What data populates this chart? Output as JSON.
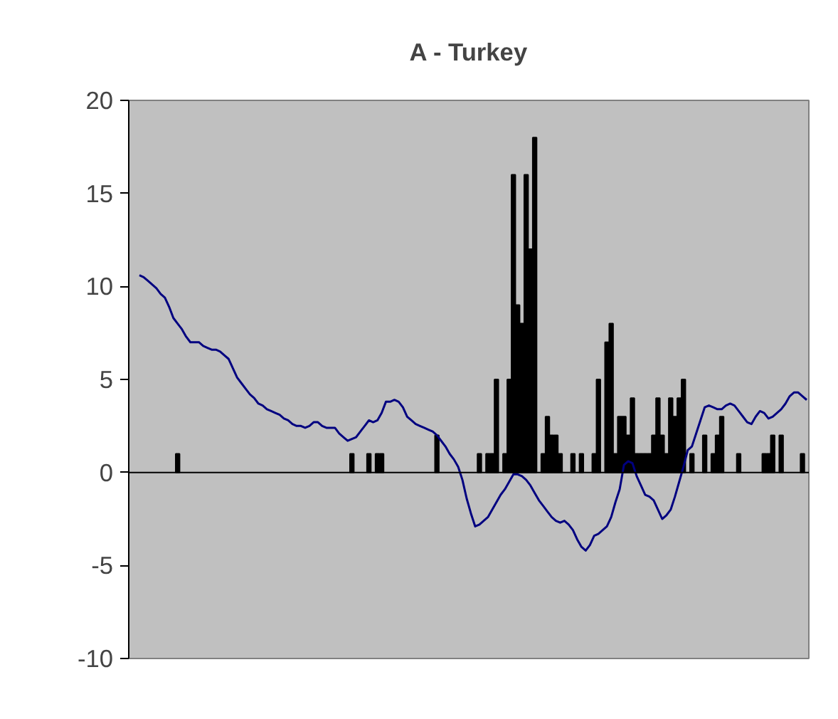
{
  "chart_data": {
    "type": "bar",
    "title": "A - Turkey",
    "categories": [
      null,
      null,
      null,
      null,
      null,
      null,
      null,
      null,
      null,
      null,
      null,
      null,
      null,
      null,
      null,
      null,
      null,
      null,
      null,
      null,
      null,
      null,
      null,
      null,
      null,
      null,
      null,
      null,
      null,
      null,
      null,
      null,
      null,
      null,
      null,
      null,
      null,
      null,
      null,
      null,
      null,
      null,
      null,
      null,
      null,
      null,
      null,
      null,
      null,
      null,
      null,
      null,
      null,
      null,
      null,
      null,
      null,
      null,
      null,
      null,
      null,
      null,
      null,
      null,
      null,
      null,
      null,
      null,
      null,
      null,
      null,
      null,
      null,
      null,
      null,
      null,
      null,
      null,
      null,
      null,
      null,
      null,
      null,
      null,
      null,
      null,
      null,
      null,
      null,
      null,
      null,
      null,
      null,
      null,
      null,
      null,
      null,
      null,
      null,
      null,
      null,
      null,
      null,
      null,
      null,
      null,
      null,
      null,
      null,
      null,
      null,
      null,
      null,
      null,
      null,
      null,
      null,
      null,
      null,
      null,
      null,
      null,
      null,
      null,
      null,
      null,
      null,
      null,
      null,
      null,
      null,
      null,
      null,
      null,
      null,
      null,
      null,
      null,
      null,
      null,
      null,
      null,
      null,
      null,
      null,
      null,
      null,
      null,
      null,
      null,
      null,
      null,
      null,
      null,
      null,
      null,
      null,
      null,
      null,
      null
    ],
    "series": [
      {
        "type": "bar",
        "color": "#000000",
        "values": [
          null,
          null,
          null,
          null,
          null,
          null,
          null,
          null,
          null,
          null,
          null,
          1,
          null,
          null,
          null,
          null,
          null,
          null,
          null,
          null,
          null,
          null,
          null,
          null,
          null,
          null,
          null,
          null,
          null,
          null,
          null,
          null,
          null,
          null,
          null,
          null,
          null,
          null,
          null,
          null,
          null,
          null,
          null,
          null,
          null,
          null,
          null,
          null,
          null,
          null,
          null,
          null,
          1,
          null,
          null,
          null,
          1,
          null,
          1,
          1,
          null,
          null,
          null,
          null,
          null,
          null,
          null,
          null,
          null,
          null,
          null,
          null,
          2,
          null,
          null,
          null,
          null,
          null,
          null,
          null,
          null,
          null,
          1,
          null,
          1,
          1,
          5,
          null,
          1,
          5,
          16,
          9,
          8,
          16,
          12,
          18,
          null,
          1,
          3,
          2,
          2,
          1,
          null,
          null,
          1,
          null,
          1,
          null,
          null,
          1,
          5,
          null,
          7,
          8,
          1,
          3,
          3,
          2,
          4,
          1,
          1,
          1,
          1,
          2,
          4,
          2,
          1,
          4,
          3,
          4,
          5,
          null,
          1,
          null,
          null,
          2,
          null,
          1,
          2,
          3,
          null,
          null,
          null,
          1,
          null,
          null,
          null,
          null,
          null,
          1,
          1,
          2,
          null,
          2,
          null,
          null,
          null,
          null,
          1,
          null
        ]
      },
      {
        "type": "line",
        "color": "#000080",
        "values": [
          null,
          null,
          10.6,
          10.5,
          10.3,
          10.1,
          9.9,
          9.6,
          9.4,
          8.9,
          8.3,
          8.0,
          7.7,
          7.3,
          7.0,
          7.0,
          7.0,
          6.8,
          6.7,
          6.6,
          6.6,
          6.5,
          6.3,
          6.1,
          5.6,
          5.1,
          4.8,
          4.5,
          4.2,
          4.0,
          3.7,
          3.6,
          3.4,
          3.3,
          3.2,
          3.1,
          2.9,
          2.8,
          2.6,
          2.5,
          2.5,
          2.4,
          2.5,
          2.7,
          2.7,
          2.5,
          2.4,
          2.4,
          2.4,
          2.1,
          1.9,
          1.7,
          1.8,
          1.9,
          2.2,
          2.5,
          2.8,
          2.7,
          2.8,
          3.2,
          3.8,
          3.8,
          3.9,
          3.8,
          3.5,
          3.0,
          2.8,
          2.6,
          2.5,
          2.4,
          2.3,
          2.2,
          2.0,
          1.7,
          1.4,
          1.0,
          0.7,
          0.3,
          -0.4,
          -1.4,
          -2.2,
          -2.9,
          -2.8,
          -2.6,
          -2.4,
          -2.0,
          -1.6,
          -1.2,
          -0.9,
          -0.5,
          -0.1,
          -0.1,
          -0.2,
          -0.4,
          -0.7,
          -1.1,
          -1.5,
          -1.8,
          -2.1,
          -2.4,
          -2.6,
          -2.7,
          -2.6,
          -2.8,
          -3.1,
          -3.6,
          -4.0,
          -4.2,
          -3.9,
          -3.4,
          -3.3,
          -3.1,
          -2.9,
          -2.4,
          -1.6,
          -0.9,
          0.4,
          0.6,
          0.5,
          -0.2,
          -0.7,
          -1.2,
          -1.3,
          -1.5,
          -2.0,
          -2.5,
          -2.3,
          -2.0,
          -1.3,
          -0.5,
          0.3,
          1.2,
          1.4,
          2.1,
          2.8,
          3.5,
          3.6,
          3.5,
          3.4,
          3.4,
          3.6,
          3.7,
          3.6,
          3.3,
          3.0,
          2.7,
          2.6,
          3.0,
          3.3,
          3.2,
          2.9,
          3.0,
          3.2,
          3.4,
          3.7,
          4.1,
          4.3,
          4.3,
          4.1,
          3.9
        ]
      }
    ],
    "ylim": [
      -10,
      20
    ],
    "yticks": [
      -10,
      -5,
      0,
      5,
      10,
      15,
      20
    ],
    "ref_lines": [
      {
        "axis": "y",
        "value": 0,
        "color": "#000000"
      }
    ],
    "grid": false,
    "tick_labels": "y"
  }
}
